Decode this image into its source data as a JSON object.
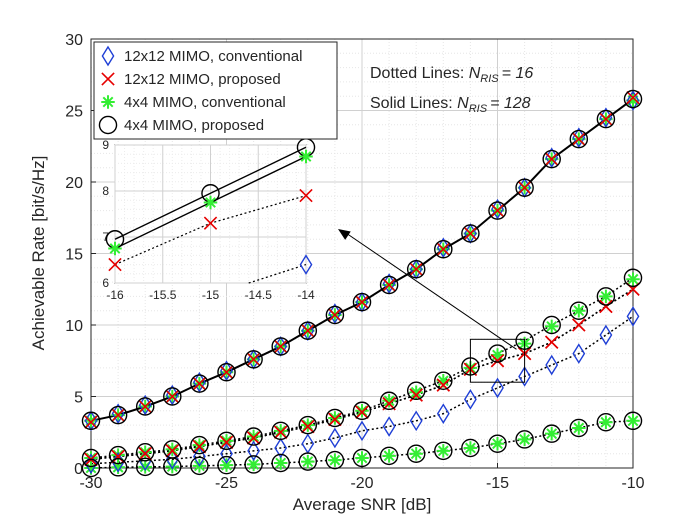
{
  "chart_data": {
    "type": "line",
    "xlabel": "Average SNR [dB]",
    "ylabel": "Achievable Rate [bit/s/Hz]",
    "xlim": [
      -30,
      -10
    ],
    "ylim": [
      0,
      30
    ],
    "xticks": [
      -30,
      -25,
      -20,
      -15,
      -10
    ],
    "yticks": [
      0,
      5,
      10,
      15,
      20,
      25,
      30
    ],
    "grid": true,
    "x": [
      -30,
      -29,
      -28,
      -27,
      -26,
      -25,
      -24,
      -23,
      -22,
      -21,
      -20,
      -19,
      -18,
      -17,
      -16,
      -15,
      -14,
      -13,
      -12,
      -11,
      -10
    ],
    "series": [
      {
        "name": "12x12 MIMO, conventional",
        "marker": "diamond",
        "color": "#1f3fd6",
        "ris": 128,
        "values": [
          3.3,
          3.8,
          4.4,
          5.1,
          6.0,
          6.8,
          7.6,
          8.5,
          9.6,
          10.8,
          11.6,
          12.9,
          13.9,
          15.4,
          16.4,
          18.1,
          19.6,
          21.7,
          23.1,
          24.5,
          25.7
        ]
      },
      {
        "name": "12x12 MIMO, proposed",
        "marker": "x",
        "color": "#e60000",
        "ris": 128,
        "values": [
          3.2,
          3.7,
          4.3,
          5.0,
          5.9,
          6.7,
          7.6,
          8.5,
          9.6,
          10.7,
          11.6,
          12.8,
          13.9,
          15.3,
          16.4,
          18.0,
          19.6,
          21.6,
          23.0,
          24.4,
          25.9
        ]
      },
      {
        "name": "4x4 MIMO, conventional",
        "marker": "asterisk",
        "color": "#33ee33",
        "ris": 128,
        "values": [
          3.3,
          3.7,
          4.3,
          5.0,
          5.9,
          6.7,
          7.6,
          8.5,
          9.6,
          10.7,
          11.6,
          12.8,
          13.9,
          15.3,
          16.4,
          18.0,
          19.6,
          21.6,
          23.0,
          24.4,
          25.7
        ]
      },
      {
        "name": "4x4 MIMO, proposed",
        "marker": "circle",
        "color": "#000000",
        "ris": 128,
        "values": [
          3.3,
          3.7,
          4.3,
          5.0,
          5.9,
          6.7,
          7.6,
          8.5,
          9.6,
          10.7,
          11.6,
          12.8,
          13.9,
          15.3,
          16.4,
          18.0,
          19.6,
          21.6,
          23.0,
          24.4,
          25.8
        ]
      },
      {
        "name": "12x12 MIMO, conventional",
        "marker": "diamond",
        "color": "#1f3fd6",
        "ris": 16,
        "values": [
          0.3,
          0.4,
          0.5,
          0.6,
          0.8,
          1.0,
          1.2,
          1.4,
          1.7,
          2.1,
          2.6,
          2.9,
          3.3,
          3.8,
          4.8,
          5.6,
          6.4,
          7.2,
          8.0,
          9.3,
          10.6
        ]
      },
      {
        "name": "12x12 MIMO, proposed",
        "marker": "x",
        "color": "#e60000",
        "ris": 16,
        "values": [
          0.6,
          0.8,
          1.0,
          1.2,
          1.5,
          1.8,
          2.1,
          2.5,
          2.9,
          3.4,
          3.9,
          4.5,
          5.1,
          5.8,
          6.9,
          7.5,
          8.0,
          8.8,
          10.0,
          11.3,
          12.5
        ]
      },
      {
        "name": "4x4 MIMO, conventional",
        "marker": "asterisk",
        "color": "#33ee33",
        "ris": 16,
        "values": [
          0.0,
          0.05,
          0.08,
          0.1,
          0.15,
          0.2,
          0.25,
          0.35,
          0.45,
          0.55,
          0.7,
          0.85,
          1.0,
          1.2,
          1.4,
          1.7,
          2.0,
          2.4,
          2.8,
          3.2,
          3.3
        ]
      },
      {
        "name": "4x4 MIMO, proposed",
        "marker": "circle",
        "color": "#000000",
        "ris": 16,
        "values": [
          0.0,
          0.05,
          0.08,
          0.1,
          0.15,
          0.2,
          0.25,
          0.35,
          0.45,
          0.55,
          0.7,
          0.85,
          1.0,
          1.2,
          1.4,
          1.7,
          2.0,
          2.4,
          2.8,
          3.2,
          3.3
        ]
      },
      {
        "name": "12x12 MIMO, proposed",
        "marker": "x",
        "color": "#e60000",
        "ris": 16,
        "group": "mid",
        "values": [
          0.6,
          0.8,
          1.0,
          1.2,
          1.5,
          1.8,
          2.1,
          2.5,
          2.9,
          3.4,
          3.9,
          4.5,
          5.1,
          5.8,
          6.9,
          7.5,
          8.0,
          8.8,
          10.0,
          11.3,
          12.5
        ]
      },
      {
        "name": "4x4 MIMO, conventional",
        "marker": "asterisk",
        "color": "#33ee33",
        "ris": 16,
        "group": "mid",
        "values": [
          0.7,
          0.9,
          1.1,
          1.3,
          1.6,
          1.9,
          2.2,
          2.6,
          3.0,
          3.5,
          4.0,
          4.7,
          5.3,
          6.1,
          7.0,
          7.9,
          8.7,
          9.9,
          11.0,
          12.0,
          13.2
        ]
      },
      {
        "name": "4x4 MIMO, proposed",
        "marker": "circle",
        "color": "#000000",
        "ris": 16,
        "group": "mid",
        "values": [
          0.7,
          0.9,
          1.1,
          1.3,
          1.6,
          1.9,
          2.2,
          2.6,
          3.0,
          3.5,
          4.0,
          4.7,
          5.4,
          6.1,
          7.1,
          8.0,
          8.9,
          10.0,
          11.0,
          12.0,
          13.3
        ]
      }
    ],
    "legend": {
      "placement": "top-left",
      "entries": [
        {
          "label": "12x12 MIMO, conventional",
          "marker": "diamond",
          "color": "#1f3fd6"
        },
        {
          "label": "12x12 MIMO, proposed",
          "marker": "x",
          "color": "#e60000"
        },
        {
          "label": "4x4 MIMO, conventional",
          "marker": "asterisk",
          "color": "#33ee33"
        },
        {
          "label": "4x4 MIMO, proposed",
          "marker": "circle",
          "color": "#000000"
        }
      ]
    },
    "annotations": {
      "dotted_prefix": "Dotted Lines: ",
      "solid_prefix": "Solid Lines: ",
      "n_symbol": "N",
      "n_subscript": "RIS",
      "dotted_value": "= 16",
      "solid_value": "= 128"
    },
    "inset": {
      "xlim": [
        -16,
        -14
      ],
      "ylim": [
        6,
        9
      ],
      "xticks": [
        -16,
        -15.5,
        -15,
        -14.5,
        -14
      ],
      "yticks": [
        6,
        7,
        8,
        9
      ],
      "series": [
        {
          "marker": "circle",
          "color": "#000000",
          "style": "solid",
          "x": [
            -16,
            -15,
            -14
          ],
          "values": [
            6.95,
            7.95,
            8.95
          ]
        },
        {
          "marker": "asterisk",
          "color": "#33ee33",
          "style": "solid",
          "x": [
            -16,
            -15,
            -14
          ],
          "values": [
            6.75,
            7.75,
            8.75
          ]
        },
        {
          "marker": "x",
          "color": "#e60000",
          "style": "dotted",
          "x": [
            -16,
            -15,
            -14
          ],
          "values": [
            6.4,
            7.3,
            7.9
          ]
        },
        {
          "marker": "diamond",
          "color": "#1f3fd6",
          "style": "dotted",
          "x": [
            -14.6,
            -14
          ],
          "values": [
            6.0,
            6.4
          ]
        }
      ]
    }
  }
}
